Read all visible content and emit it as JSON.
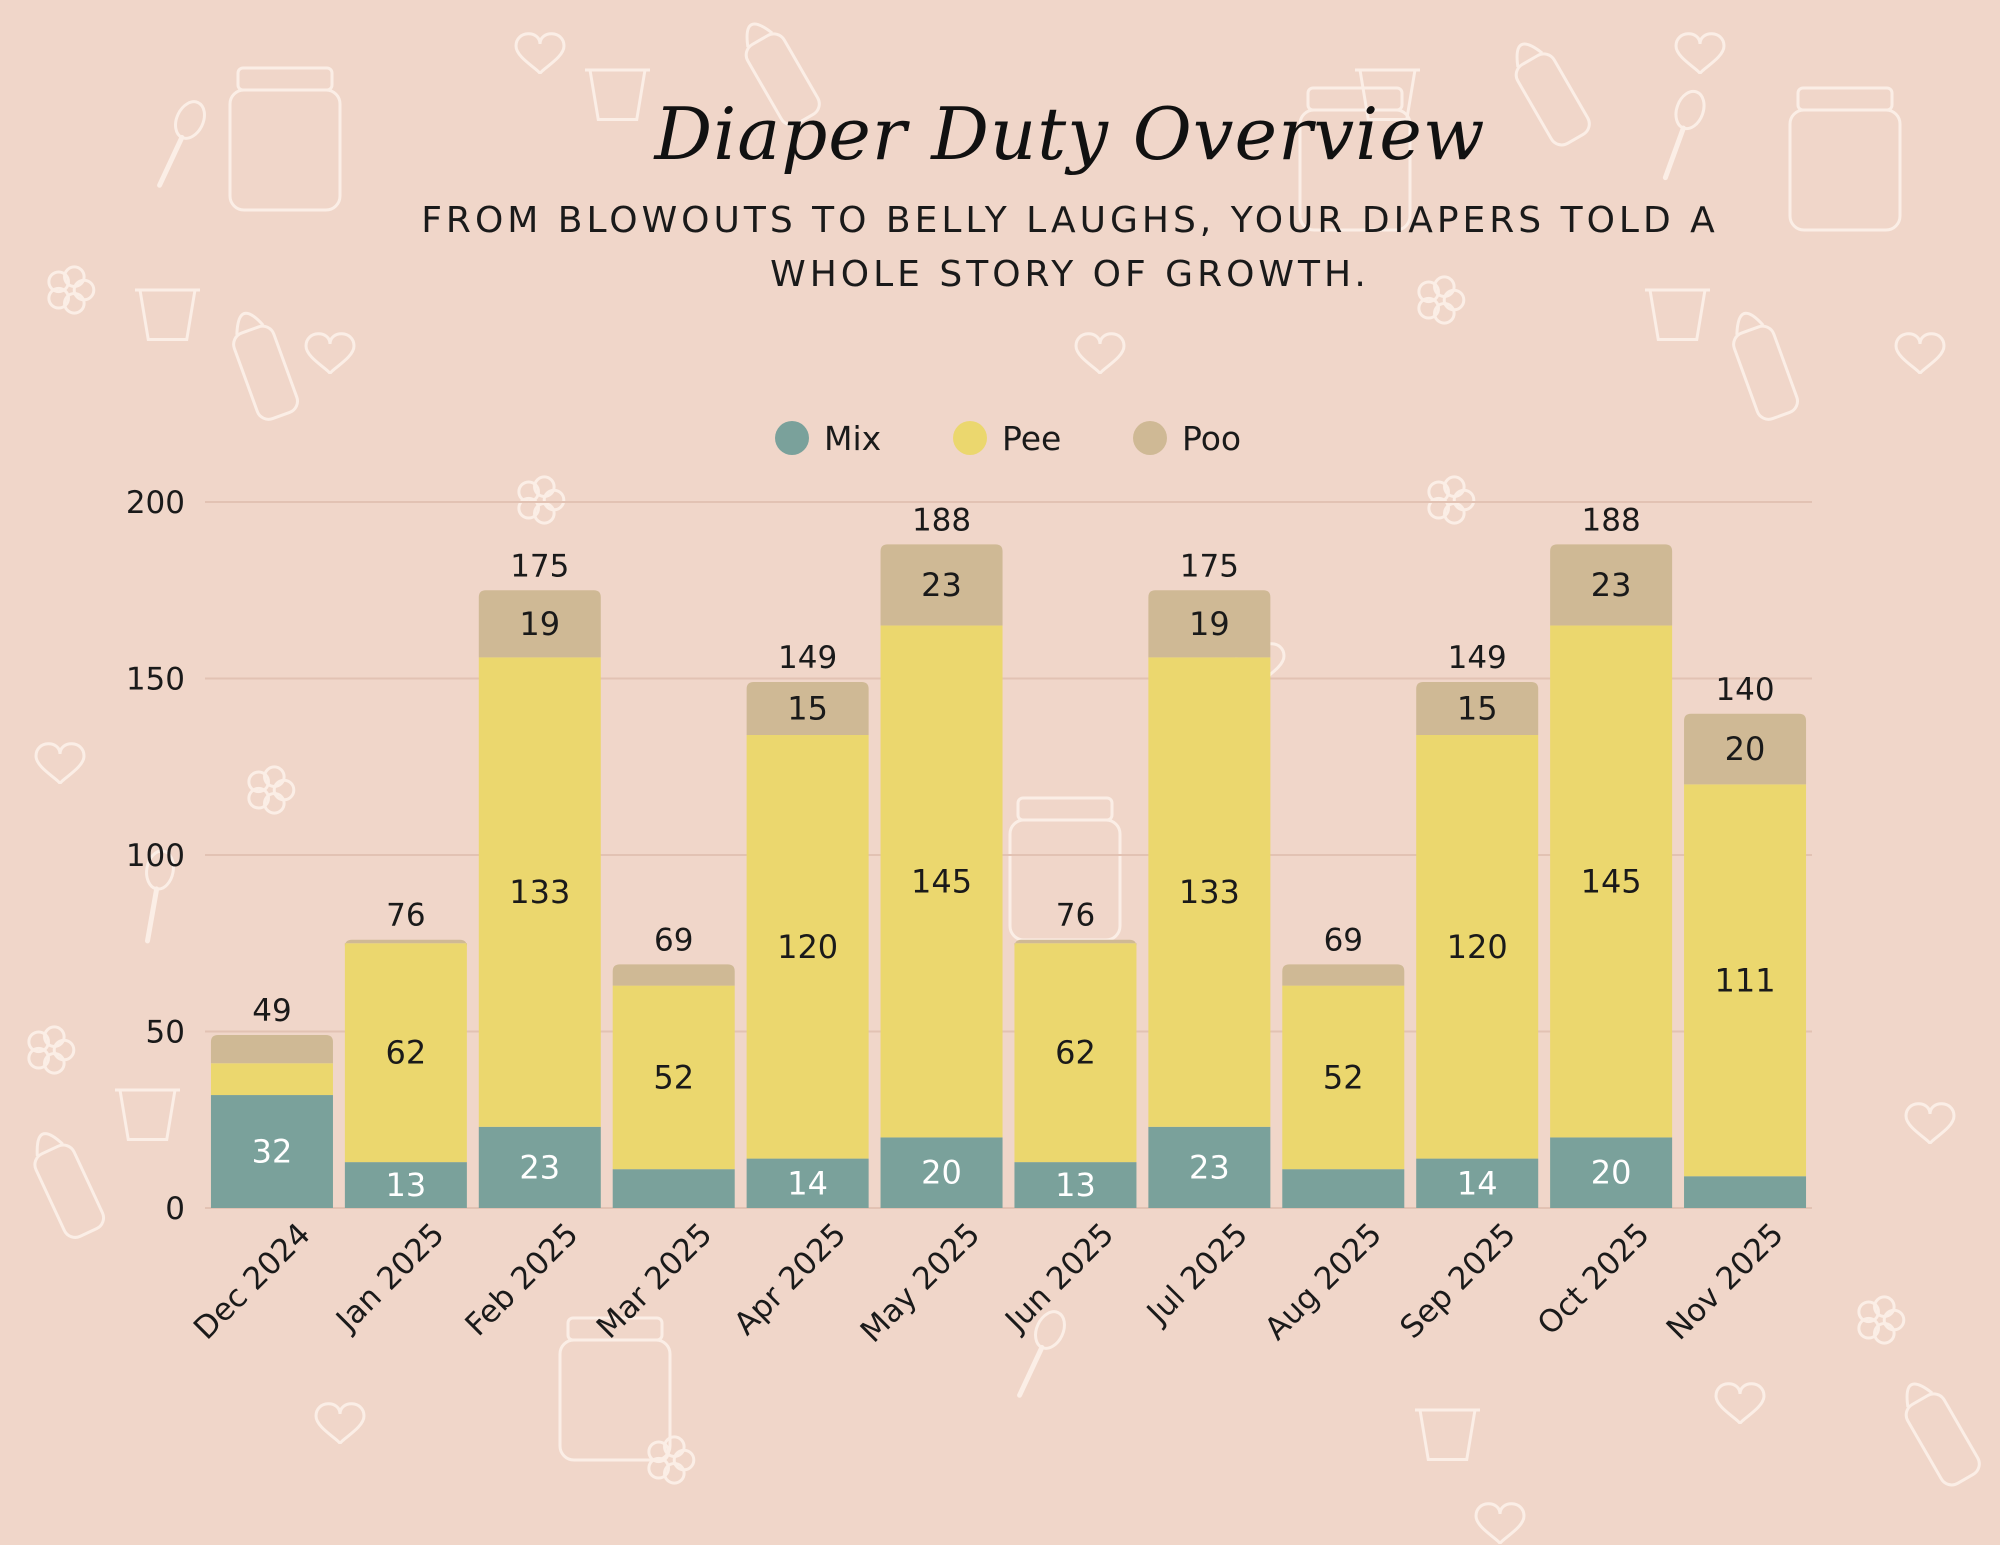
{
  "title": "Diaper Duty Overview",
  "subtitle": "From blowouts to belly laughs, your diapers told a whole story of growth.",
  "colors": {
    "background": "#f0d6c9",
    "mix": "#7aa19b",
    "pee": "#ebd76e",
    "poo": "#cfb995",
    "grid": "#e2c2b3"
  },
  "chart_data": {
    "type": "bar",
    "stacked": true,
    "categories": [
      "Dec 2024",
      "Jan 2025",
      "Feb 2025",
      "Mar 2025",
      "Apr 2025",
      "May 2025",
      "Jun 2025",
      "Jul 2025",
      "Aug 2025",
      "Sep 2025",
      "Oct 2025",
      "Nov 2025"
    ],
    "series": [
      {
        "name": "Mix",
        "values": [
          32,
          13,
          23,
          11,
          14,
          20,
          13,
          23,
          11,
          14,
          20,
          9
        ]
      },
      {
        "name": "Pee",
        "values": [
          9,
          62,
          133,
          52,
          120,
          145,
          62,
          133,
          52,
          120,
          145,
          111
        ]
      },
      {
        "name": "Poo",
        "values": [
          8,
          1,
          19,
          6,
          15,
          23,
          1,
          19,
          6,
          15,
          23,
          20
        ]
      }
    ],
    "totals": [
      49,
      76,
      175,
      69,
      149,
      188,
      76,
      175,
      69,
      149,
      188,
      140
    ],
    "segment_labels": {
      "Mix": [
        "32",
        "13",
        "23",
        "",
        "14",
        "20",
        "13",
        "23",
        "",
        "14",
        "20",
        ""
      ],
      "Pee": [
        "",
        "62",
        "133",
        "52",
        "120",
        "145",
        "62",
        "133",
        "52",
        "120",
        "145",
        "111"
      ],
      "Poo": [
        "",
        "",
        "19",
        "",
        "15",
        "23",
        "",
        "19",
        "",
        "15",
        "23",
        "20"
      ]
    },
    "y_ticks": [
      0,
      50,
      100,
      150,
      200
    ],
    "ylim": [
      0,
      200
    ],
    "xlabel": "",
    "ylabel": "",
    "grid": true,
    "legend_position": "top-center"
  }
}
